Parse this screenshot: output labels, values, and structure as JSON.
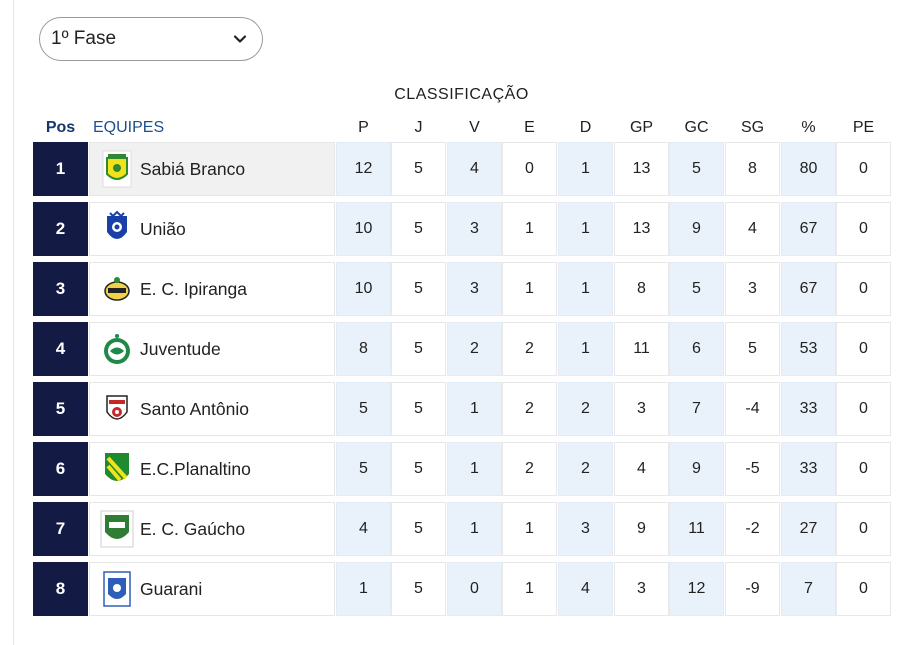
{
  "phase_select": {
    "value": "1º Fase",
    "icon": "chevron-down-icon"
  },
  "group_label": "CLASSIFICAÇÃO",
  "headers": {
    "pos": "Pos",
    "team": "EQUIPES",
    "stats": [
      "P",
      "J",
      "V",
      "E",
      "D",
      "GP",
      "GC",
      "SG",
      "%",
      "PE"
    ]
  },
  "colors": {
    "pos_bg": "#131a44",
    "header_pos": "#13386b",
    "header_team": "#1c4f8f",
    "shade": "#e9f2fb"
  },
  "rows": [
    {
      "pos": "1",
      "team": "Sabiá Branco",
      "logo": "sabia-branco-crest-icon",
      "stats": [
        "12",
        "5",
        "4",
        "0",
        "1",
        "13",
        "5",
        "8",
        "80",
        "0"
      ]
    },
    {
      "pos": "2",
      "team": "União",
      "logo": "uniao-crest-icon",
      "stats": [
        "10",
        "5",
        "3",
        "1",
        "1",
        "13",
        "9",
        "4",
        "67",
        "0"
      ]
    },
    {
      "pos": "3",
      "team": "E. C. Ipiranga",
      "logo": "ipiranga-crest-icon",
      "stats": [
        "10",
        "5",
        "3",
        "1",
        "1",
        "8",
        "5",
        "3",
        "67",
        "0"
      ]
    },
    {
      "pos": "4",
      "team": "Juventude",
      "logo": "juventude-crest-icon",
      "stats": [
        "8",
        "5",
        "2",
        "2",
        "1",
        "11",
        "6",
        "5",
        "53",
        "0"
      ]
    },
    {
      "pos": "5",
      "team": "Santo Antônio",
      "logo": "santo-antonio-crest-icon",
      "stats": [
        "5",
        "5",
        "1",
        "2",
        "2",
        "3",
        "7",
        "-4",
        "33",
        "0"
      ]
    },
    {
      "pos": "6",
      "team": "E.C.Planaltino",
      "logo": "planaltino-crest-icon",
      "stats": [
        "5",
        "5",
        "1",
        "2",
        "2",
        "4",
        "9",
        "-5",
        "33",
        "0"
      ]
    },
    {
      "pos": "7",
      "team": "E. C. Gaúcho",
      "logo": "gaucho-crest-icon",
      "stats": [
        "4",
        "5",
        "1",
        "1",
        "3",
        "9",
        "11",
        "-2",
        "27",
        "0"
      ]
    },
    {
      "pos": "8",
      "team": "Guarani",
      "logo": "guarani-crest-icon",
      "stats": [
        "1",
        "5",
        "0",
        "1",
        "4",
        "3",
        "12",
        "-9",
        "7",
        "0"
      ]
    }
  ]
}
